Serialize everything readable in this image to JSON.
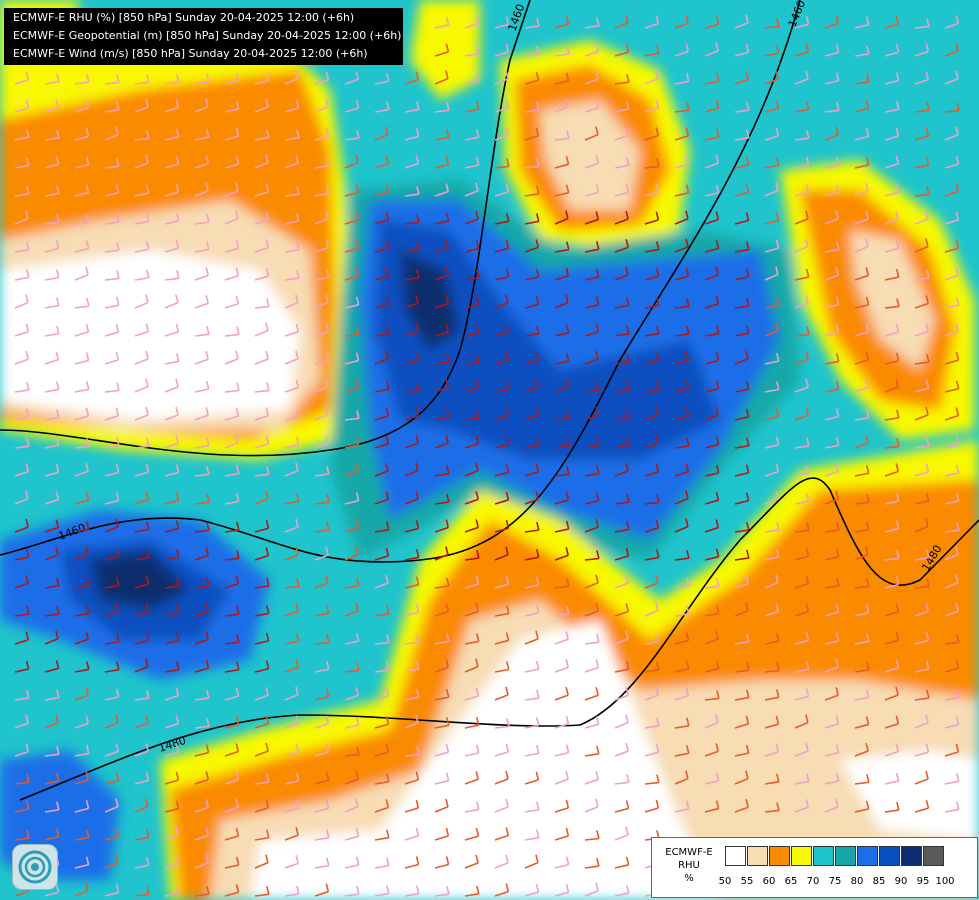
{
  "header": {
    "lines": [
      "ECMWF-E RHU (%) [850 hPa] Sunday 20-04-2025 12:00 (+6h)",
      "ECMWF-E Geopotential (m) [850 hPa] Sunday 20-04-2025 12:00 (+6h)",
      "ECMWF-E Wind (m/s) [850 hPa] Sunday 20-04-2025 12:00 (+6h)"
    ]
  },
  "map": {
    "isoline_labels": [
      "1460",
      "1460",
      "1460",
      "1480",
      "1480"
    ]
  },
  "legend": {
    "title_lines": [
      "ECMWF-E",
      "RHU",
      "%"
    ],
    "levels": [
      {
        "label": "50",
        "color": "#ffffff"
      },
      {
        "label": "55",
        "color": "#f7dcb4"
      },
      {
        "label": "60",
        "color": "#fa8a04"
      },
      {
        "label": "65",
        "color": "#f8f800"
      },
      {
        "label": "70",
        "color": "#1fc4cc"
      },
      {
        "label": "75",
        "color": "#16a8a8"
      },
      {
        "label": "80",
        "color": "#1a6ee8"
      },
      {
        "label": "85",
        "color": "#0a4fc0"
      },
      {
        "label": "90",
        "color": "#0b2d6e"
      },
      {
        "label": "95",
        "color": "#a0a0a0"
      },
      {
        "label": "100",
        "color": "#5a5a5a"
      }
    ]
  },
  "logo": {
    "icon": "ecmwf-logo-icon"
  }
}
